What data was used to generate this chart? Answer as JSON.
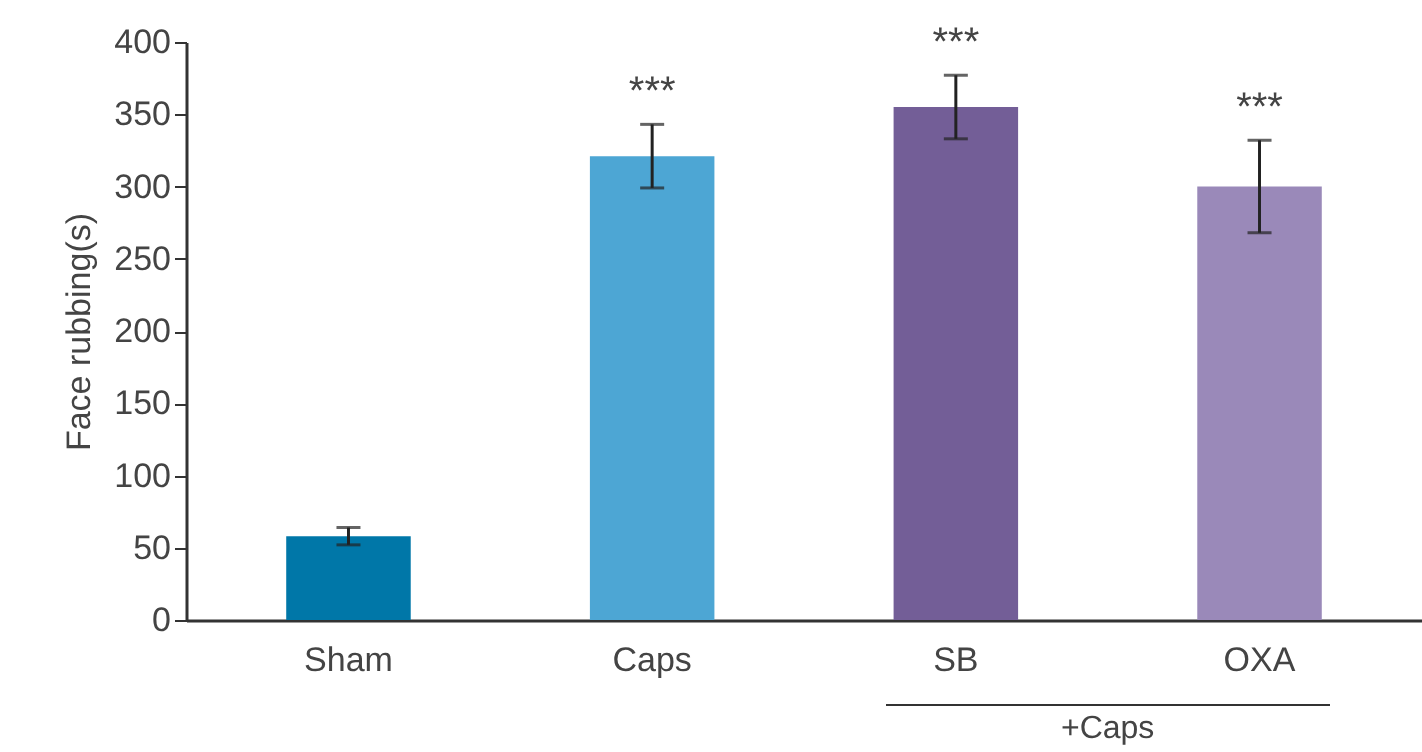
{
  "chart_data": {
    "type": "bar",
    "ylabel": "Face rubbing(s)",
    "categories": [
      "Sham",
      "Caps",
      "SB",
      "OXA"
    ],
    "values": [
      58,
      321,
      355,
      300
    ],
    "errors": [
      6,
      22,
      22,
      32
    ],
    "colors": [
      "#0077a8",
      "#4da6d4",
      "#735e97",
      "#9a89b9"
    ],
    "ylim": [
      0,
      400
    ],
    "yticks": [
      0,
      50,
      100,
      150,
      200,
      250,
      300,
      350,
      400
    ],
    "annotations": [
      {
        "text": "***",
        "x": "Caps",
        "y": 343
      },
      {
        "text": "***",
        "x": "SB",
        "y": 377
      },
      {
        "text": "***",
        "x": "OXA",
        "y": 332
      },
      "+Caps"
    ]
  }
}
